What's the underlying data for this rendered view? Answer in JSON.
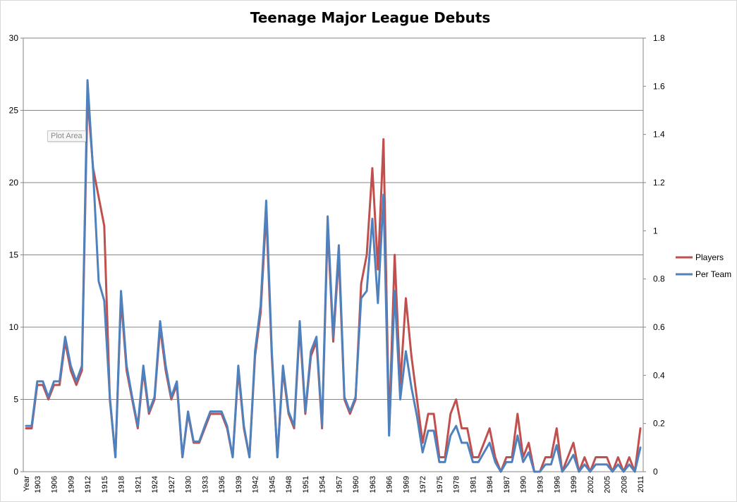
{
  "chart_data": {
    "type": "line",
    "title": "Teenage Major League Debuts",
    "x_first_label": "Year",
    "x": [
      1901,
      1902,
      1903,
      1904,
      1905,
      1906,
      1907,
      1908,
      1909,
      1910,
      1911,
      1912,
      1913,
      1914,
      1915,
      1916,
      1917,
      1918,
      1919,
      1920,
      1921,
      1922,
      1923,
      1924,
      1925,
      1926,
      1927,
      1928,
      1929,
      1930,
      1931,
      1932,
      1933,
      1934,
      1935,
      1936,
      1937,
      1938,
      1939,
      1940,
      1941,
      1942,
      1943,
      1944,
      1945,
      1946,
      1947,
      1948,
      1949,
      1950,
      1951,
      1952,
      1953,
      1954,
      1955,
      1956,
      1957,
      1958,
      1959,
      1960,
      1961,
      1962,
      1963,
      1964,
      1965,
      1966,
      1967,
      1968,
      1969,
      1970,
      1971,
      1972,
      1973,
      1974,
      1975,
      1976,
      1977,
      1978,
      1979,
      1980,
      1981,
      1982,
      1983,
      1984,
      1985,
      1986,
      1987,
      1988,
      1989,
      1990,
      1991,
      1992,
      1993,
      1994,
      1995,
      1996,
      1997,
      1998,
      1999,
      2000,
      2001,
      2002,
      2003,
      2004,
      2005,
      2006,
      2007,
      2008,
      2009,
      2010,
      2011
    ],
    "x_tick_labels": [
      "1903",
      "1906",
      "1909",
      "1912",
      "1915",
      "1918",
      "1921",
      "1924",
      "1927",
      "1930",
      "1933",
      "1936",
      "1939",
      "1942",
      "1945",
      "1948",
      "1951",
      "1954",
      "1957",
      "1960",
      "1963",
      "1966",
      "1969",
      "1972",
      "1975",
      "1978",
      "1981",
      "1984",
      "1987",
      "1990",
      "1993",
      "1996",
      "1999",
      "2002",
      "2005",
      "2008",
      "2011"
    ],
    "y_left_lim": [
      0,
      30
    ],
    "y_left_ticks": [
      "0",
      "5",
      "10",
      "15",
      "20",
      "25",
      "30"
    ],
    "y_right_lim": [
      0,
      1.8
    ],
    "y_right_ticks": [
      "0",
      "0.2",
      "0.4",
      "0.6",
      "0.8",
      "1",
      "1.2",
      "1.4",
      "1.6",
      "1.8"
    ],
    "grid": true,
    "legend_position": "right",
    "series": [
      {
        "name": "Players",
        "axis": "left",
        "color": "#c0504d",
        "values": [
          3,
          3,
          6,
          6,
          5,
          6,
          6,
          9,
          7,
          6,
          7,
          26,
          21,
          19,
          17,
          5,
          1,
          12,
          7,
          5,
          3,
          7,
          4,
          5,
          10,
          7,
          5,
          6,
          1,
          4,
          2,
          2,
          3,
          4,
          4,
          4,
          3,
          1,
          7,
          3,
          1,
          8,
          11,
          18,
          8,
          1,
          7,
          4,
          3,
          10,
          4,
          8,
          9,
          3,
          17,
          9,
          15,
          5,
          4,
          5,
          13,
          15,
          21,
          14,
          23,
          3,
          15,
          6,
          12,
          8,
          5,
          2,
          4,
          4,
          1,
          1,
          4,
          5,
          3,
          3,
          1,
          1,
          2,
          3,
          1,
          0,
          1,
          1,
          4,
          1,
          2,
          0,
          0,
          1,
          1,
          3,
          0,
          1,
          2,
          0,
          1,
          0,
          1,
          1,
          1,
          0,
          1,
          0,
          1,
          0,
          3
        ]
      },
      {
        "name": "Per Team",
        "axis": "right",
        "color": "#4f81bd",
        "values": [
          0.19,
          0.19,
          0.375,
          0.375,
          0.31,
          0.375,
          0.375,
          0.56,
          0.44,
          0.375,
          0.44,
          1.625,
          1.25,
          0.79,
          0.71,
          0.31,
          0.06,
          0.75,
          0.44,
          0.31,
          0.19,
          0.44,
          0.25,
          0.31,
          0.625,
          0.44,
          0.31,
          0.375,
          0.06,
          0.25,
          0.125,
          0.125,
          0.19,
          0.25,
          0.25,
          0.25,
          0.19,
          0.06,
          0.44,
          0.19,
          0.06,
          0.5,
          0.69,
          1.125,
          0.5,
          0.06,
          0.44,
          0.25,
          0.19,
          0.625,
          0.25,
          0.5,
          0.56,
          0.19,
          1.06,
          0.56,
          0.94,
          0.31,
          0.25,
          0.31,
          0.72,
          0.75,
          1.05,
          0.7,
          1.15,
          0.15,
          0.75,
          0.3,
          0.5,
          0.35,
          0.23,
          0.08,
          0.17,
          0.17,
          0.04,
          0.04,
          0.15,
          0.19,
          0.12,
          0.12,
          0.04,
          0.04,
          0.08,
          0.12,
          0.04,
          0.0,
          0.04,
          0.04,
          0.15,
          0.04,
          0.08,
          0.0,
          0.0,
          0.03,
          0.03,
          0.11,
          0.0,
          0.03,
          0.07,
          0.0,
          0.03,
          0.0,
          0.03,
          0.03,
          0.03,
          0.0,
          0.03,
          0.0,
          0.03,
          0.0,
          0.1
        ]
      }
    ]
  },
  "overlay": {
    "plot_area_tooltip": "Plot Area"
  }
}
